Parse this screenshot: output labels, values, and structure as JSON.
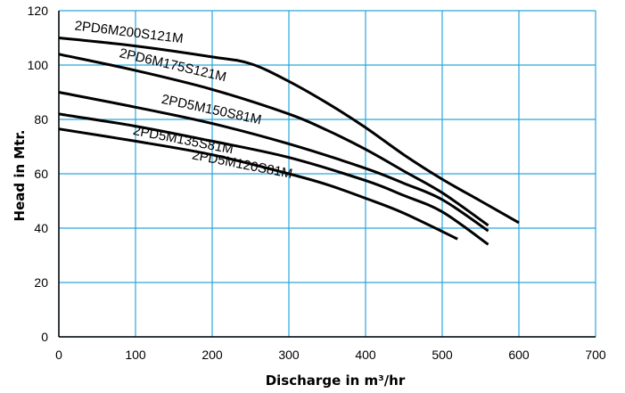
{
  "chart_data": {
    "type": "line",
    "xlabel": "Discharge in m³/hr",
    "ylabel": "Head in Mtr.",
    "xlim": [
      0,
      700
    ],
    "ylim": [
      0,
      120
    ],
    "xticks": [
      "0",
      "100",
      "200",
      "300",
      "400",
      "500",
      "600",
      "700"
    ],
    "yticks": [
      "0",
      "20",
      "40",
      "60",
      "80",
      "100",
      "120"
    ],
    "grid": true,
    "grid_color": "#29a6dd",
    "line_color": "#000000",
    "series": [
      {
        "name": "2PD6M200S121M",
        "x": [
          0,
          100,
          200,
          250,
          300,
          350,
          400,
          450,
          500,
          550,
          600
        ],
        "y": [
          110,
          107,
          103,
          100.5,
          94,
          86,
          77,
          67,
          58,
          50,
          42
        ]
      },
      {
        "name": "2PD6M175S121M",
        "x": [
          0,
          100,
          200,
          300,
          350,
          400,
          450,
          500,
          560
        ],
        "y": [
          104,
          98,
          91,
          82,
          76,
          69,
          61,
          53,
          41
        ]
      },
      {
        "name": "2PD5M150S81M",
        "x": [
          0,
          100,
          200,
          300,
          400,
          450,
          500,
          560
        ],
        "y": [
          90,
          84.5,
          78.5,
          71,
          62,
          56.5,
          50.5,
          39
        ]
      },
      {
        "name": "2PD5M135S81M",
        "x": [
          0,
          100,
          200,
          300,
          400,
          450,
          500,
          560
        ],
        "y": [
          82,
          77.5,
          72,
          66,
          57.5,
          52,
          46,
          34
        ]
      },
      {
        "name": "2PD5M120S81M",
        "x": [
          0,
          100,
          200,
          300,
          350,
          400,
          450,
          520
        ],
        "y": [
          76.5,
          72,
          67,
          60,
          56,
          51,
          45.5,
          36
        ]
      }
    ]
  }
}
